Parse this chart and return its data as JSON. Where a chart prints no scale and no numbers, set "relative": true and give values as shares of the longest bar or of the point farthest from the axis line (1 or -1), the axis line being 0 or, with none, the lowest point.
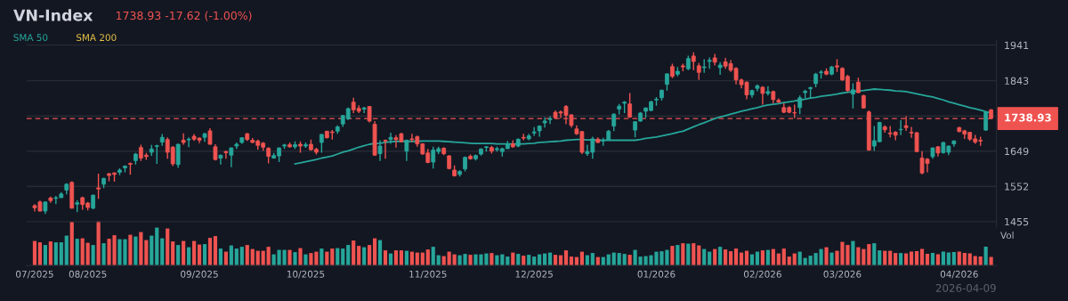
{
  "chart_data": [
    {
      "type": "candlestick",
      "title": "VN-Index",
      "subtitle": "1738.93 -17.62 (-1.00%)",
      "categories": [
        null,
        null,
        null,
        null,
        null,
        null,
        null,
        null,
        null,
        null,
        null,
        null,
        null,
        null,
        null,
        null,
        null,
        null,
        null,
        null,
        null,
        null,
        null,
        null,
        null,
        null,
        null,
        null,
        null,
        null,
        null,
        null,
        null,
        null,
        null,
        null,
        null,
        null,
        null,
        null,
        null,
        null,
        null,
        null,
        null,
        null,
        null,
        null,
        null,
        null,
        null,
        null,
        null,
        null,
        null,
        null,
        null,
        null,
        null,
        null,
        null,
        null,
        null,
        null,
        null,
        null,
        null,
        null,
        null,
        null,
        null,
        null,
        null,
        null,
        null,
        null,
        null,
        null,
        null,
        null,
        null,
        null,
        null,
        null,
        null,
        null,
        null,
        null,
        null,
        null,
        null,
        null,
        null,
        null,
        null,
        null,
        null,
        null,
        null,
        null,
        null,
        null,
        null,
        null,
        null,
        null,
        null,
        null,
        null,
        null,
        null,
        null,
        null,
        null,
        null,
        null,
        null,
        null,
        null,
        null,
        null,
        null,
        null,
        null,
        null,
        null,
        null,
        null,
        null,
        null,
        null,
        null,
        null,
        null,
        null,
        null,
        null,
        null,
        null,
        null,
        null,
        null,
        null,
        null,
        null,
        null,
        null,
        null,
        null,
        null,
        null,
        null,
        null,
        null,
        null,
        null,
        null,
        null,
        null,
        null,
        null,
        null,
        null,
        null,
        null,
        null,
        null,
        null,
        null,
        null,
        null,
        null,
        null,
        null,
        null,
        null,
        null,
        null,
        null,
        null,
        null
      ],
      "ohlc": [
        [
          1499,
          1503,
          1483,
          1493
        ],
        [
          1509,
          1513,
          1483,
          1484
        ],
        [
          1484,
          1510,
          1476,
          1509
        ],
        [
          1520,
          1524,
          1507,
          1513
        ],
        [
          1519,
          1526,
          1503,
          1521
        ],
        [
          1521,
          1536,
          1520,
          1531
        ],
        [
          1542,
          1561,
          1530,
          1558
        ],
        [
          1563,
          1566,
          1491,
          1492
        ],
        [
          1503,
          1514,
          1481,
          1507
        ],
        [
          1521,
          1524,
          1488,
          1502
        ],
        [
          1506,
          1509,
          1486,
          1494
        ],
        [
          1492,
          1529,
          1489,
          1528
        ],
        [
          1548,
          1587,
          1518,
          1545
        ],
        [
          1558,
          1576,
          1547,
          1574
        ],
        [
          1587,
          1589,
          1566,
          1582
        ],
        [
          1589,
          1591,
          1565,
          1585
        ],
        [
          1591,
          1602,
          1583,
          1597
        ],
        [
          1603,
          1610,
          1591,
          1608
        ],
        [
          1615,
          1618,
          1584,
          1613
        ],
        [
          1623,
          1644,
          1612,
          1641
        ],
        [
          1659,
          1667,
          1622,
          1630
        ],
        [
          1638,
          1644,
          1625,
          1634
        ],
        [
          1646,
          1666,
          1636,
          1655
        ],
        [
          1662,
          1667,
          1614,
          1664
        ],
        [
          1674,
          1696,
          1664,
          1687
        ],
        [
          1681,
          1687,
          1628,
          1646
        ],
        [
          1660,
          1663,
          1608,
          1614
        ],
        [
          1612,
          1669,
          1603,
          1668
        ],
        [
          1679,
          1698,
          1667,
          1673
        ],
        [
          1680,
          1687,
          1660,
          1682
        ],
        [
          1690,
          1696,
          1677,
          1682
        ],
        [
          1685,
          1687,
          1671,
          1679
        ],
        [
          1687,
          1700,
          1675,
          1697
        ],
        [
          1705,
          1712,
          1667,
          1668
        ],
        [
          1661,
          1668,
          1623,
          1626
        ],
        [
          1630,
          1640,
          1612,
          1638
        ],
        [
          1648,
          1650,
          1628,
          1645
        ],
        [
          1638,
          1659,
          1605,
          1658
        ],
        [
          1663,
          1673,
          1655,
          1668
        ],
        [
          1673,
          1687,
          1669,
          1686
        ],
        [
          1697,
          1699,
          1677,
          1681
        ],
        [
          1679,
          1685,
          1671,
          1673
        ],
        [
          1677,
          1681,
          1653,
          1665
        ],
        [
          1671,
          1674,
          1650,
          1660
        ],
        [
          1657,
          1660,
          1615,
          1635
        ],
        [
          1630,
          1644,
          1628,
          1637
        ],
        [
          1636,
          1659,
          1619,
          1658
        ],
        [
          1663,
          1669,
          1655,
          1666
        ],
        [
          1667,
          1673,
          1658,
          1661
        ],
        [
          1661,
          1676,
          1655,
          1667
        ],
        [
          1668,
          1676,
          1645,
          1663
        ],
        [
          1663,
          1673,
          1658,
          1667
        ],
        [
          1668,
          1681,
          1650,
          1653
        ],
        [
          1654,
          1658,
          1640,
          1646
        ],
        [
          1673,
          1697,
          1645,
          1695
        ],
        [
          1704,
          1705,
          1684,
          1686
        ],
        [
          1702,
          1707,
          1681,
          1700
        ],
        [
          1704,
          1720,
          1697,
          1716
        ],
        [
          1724,
          1749,
          1716,
          1747
        ],
        [
          1738,
          1769,
          1735,
          1766
        ],
        [
          1784,
          1796,
          1754,
          1763
        ],
        [
          1767,
          1775,
          1754,
          1759
        ],
        [
          1765,
          1771,
          1754,
          1768
        ],
        [
          1772,
          1773,
          1728,
          1732
        ],
        [
          1723,
          1732,
          1637,
          1638
        ],
        [
          1642,
          1679,
          1622,
          1663
        ],
        [
          1679,
          1681,
          1628,
          1677
        ],
        [
          1681,
          1700,
          1669,
          1687
        ],
        [
          1686,
          1693,
          1659,
          1681
        ],
        [
          1697,
          1700,
          1674,
          1675
        ],
        [
          1649,
          1681,
          1622,
          1679
        ],
        [
          1683,
          1697,
          1674,
          1681
        ],
        [
          1689,
          1692,
          1661,
          1669
        ],
        [
          1669,
          1671,
          1640,
          1641
        ],
        [
          1644,
          1655,
          1616,
          1618
        ],
        [
          1619,
          1661,
          1601,
          1652
        ],
        [
          1648,
          1661,
          1641,
          1656
        ],
        [
          1657,
          1660,
          1638,
          1642
        ],
        [
          1636,
          1638,
          1599,
          1601
        ],
        [
          1597,
          1610,
          1579,
          1581
        ],
        [
          1585,
          1597,
          1579,
          1593
        ],
        [
          1600,
          1634,
          1593,
          1632
        ],
        [
          1635,
          1640,
          1626,
          1628
        ],
        [
          1628,
          1640,
          1623,
          1637
        ],
        [
          1641,
          1657,
          1637,
          1655
        ],
        [
          1659,
          1663,
          1648,
          1661
        ],
        [
          1659,
          1664,
          1642,
          1649
        ],
        [
          1653,
          1661,
          1648,
          1656
        ],
        [
          1648,
          1659,
          1634,
          1656
        ],
        [
          1656,
          1677,
          1655,
          1668
        ],
        [
          1669,
          1679,
          1658,
          1661
        ],
        [
          1663,
          1684,
          1660,
          1682
        ],
        [
          1687,
          1697,
          1679,
          1685
        ],
        [
          1683,
          1697,
          1679,
          1691
        ],
        [
          1699,
          1715,
          1691,
          1702
        ],
        [
          1705,
          1720,
          1689,
          1718
        ],
        [
          1727,
          1742,
          1714,
          1732
        ],
        [
          1736,
          1745,
          1724,
          1739
        ],
        [
          1756,
          1761,
          1738,
          1741
        ],
        [
          1757,
          1761,
          1740,
          1754
        ],
        [
          1772,
          1776,
          1723,
          1748
        ],
        [
          1749,
          1751,
          1714,
          1720
        ],
        [
          1710,
          1720,
          1694,
          1697
        ],
        [
          1703,
          1705,
          1641,
          1646
        ],
        [
          1642,
          1667,
          1636,
          1648
        ],
        [
          1646,
          1689,
          1628,
          1683
        ],
        [
          1682,
          1687,
          1671,
          1673
        ],
        [
          1677,
          1686,
          1664,
          1679
        ],
        [
          1679,
          1707,
          1678,
          1704
        ],
        [
          1718,
          1753,
          1704,
          1751
        ],
        [
          1765,
          1779,
          1750,
          1773
        ],
        [
          1781,
          1787,
          1754,
          1784
        ],
        [
          1779,
          1809,
          1741,
          1743
        ],
        [
          1707,
          1732,
          1687,
          1730
        ],
        [
          1732,
          1757,
          1730,
          1754
        ],
        [
          1759,
          1769,
          1741,
          1768
        ],
        [
          1761,
          1788,
          1759,
          1785
        ],
        [
          1790,
          1798,
          1774,
          1792
        ],
        [
          1796,
          1818,
          1788,
          1817
        ],
        [
          1833,
          1863,
          1816,
          1862
        ],
        [
          1882,
          1890,
          1850,
          1855
        ],
        [
          1861,
          1881,
          1855,
          1869
        ],
        [
          1884,
          1890,
          1869,
          1881
        ],
        [
          1876,
          1912,
          1872,
          1904
        ],
        [
          1911,
          1921,
          1872,
          1896
        ],
        [
          1884,
          1892,
          1845,
          1866
        ],
        [
          1879,
          1902,
          1865,
          1881
        ],
        [
          1896,
          1907,
          1876,
          1899
        ],
        [
          1906,
          1917,
          1885,
          1894
        ],
        [
          1879,
          1894,
          1859,
          1886
        ],
        [
          1895,
          1906,
          1876,
          1883
        ],
        [
          1890,
          1900,
          1867,
          1872
        ],
        [
          1877,
          1880,
          1833,
          1845
        ],
        [
          1845,
          1849,
          1822,
          1832
        ],
        [
          1839,
          1841,
          1792,
          1804
        ],
        [
          1804,
          1818,
          1796,
          1816
        ],
        [
          1822,
          1833,
          1814,
          1829
        ],
        [
          1825,
          1828,
          1777,
          1808
        ],
        [
          1808,
          1828,
          1802,
          1813
        ],
        [
          1813,
          1816,
          1781,
          1791
        ],
        [
          1789,
          1794,
          1782,
          1784
        ],
        [
          1769,
          1781,
          1754,
          1756
        ],
        [
          1769,
          1773,
          1753,
          1756
        ],
        [
          1755,
          1777,
          1740,
          1754
        ],
        [
          1769,
          1802,
          1751,
          1796
        ],
        [
          1810,
          1818,
          1794,
          1814
        ],
        [
          1821,
          1827,
          1794,
          1824
        ],
        [
          1835,
          1865,
          1825,
          1861
        ],
        [
          1865,
          1872,
          1849,
          1867
        ],
        [
          1869,
          1877,
          1858,
          1861
        ],
        [
          1861,
          1884,
          1858,
          1881
        ],
        [
          1884,
          1902,
          1867,
          1881
        ],
        [
          1877,
          1880,
          1843,
          1845
        ],
        [
          1855,
          1859,
          1812,
          1816
        ],
        [
          1806,
          1836,
          1767,
          1818
        ],
        [
          1839,
          1851,
          1809,
          1810
        ],
        [
          1802,
          1804,
          1766,
          1768
        ],
        [
          1757,
          1761,
          1650,
          1652
        ],
        [
          1663,
          1718,
          1650,
          1678
        ],
        [
          1675,
          1730,
          1674,
          1728
        ],
        [
          1716,
          1720,
          1700,
          1708
        ],
        [
          1699,
          1718,
          1687,
          1697
        ],
        [
          1701,
          1704,
          1679,
          1693
        ],
        [
          1708,
          1734,
          1693,
          1709
        ],
        [
          1719,
          1745,
          1705,
          1714
        ],
        [
          1701,
          1716,
          1686,
          1699
        ],
        [
          1700,
          1701,
          1646,
          1648
        ],
        [
          1630,
          1649,
          1585,
          1589
        ],
        [
          1627,
          1630,
          1591,
          1615
        ],
        [
          1634,
          1659,
          1628,
          1658
        ],
        [
          1661,
          1663,
          1634,
          1644
        ],
        [
          1645,
          1675,
          1642,
          1673
        ],
        [
          1646,
          1665,
          1638,
          1663
        ],
        [
          1669,
          1679,
          1661,
          1677
        ],
        [
          1714,
          1716,
          1701,
          1703
        ],
        [
          1705,
          1708,
          1683,
          1696
        ],
        [
          1701,
          1702,
          1677,
          1682
        ],
        [
          1683,
          1694,
          1669,
          1674
        ],
        [
          1679,
          1689,
          1664,
          1677
        ],
        [
          1707,
          1759,
          1705,
          1756
        ],
        [
          1763,
          1765,
          1738.93,
          1738.93
        ]
      ],
      "colors": [
        "#ef5350",
        "#ef5350",
        "#26a69a",
        "#ef5350",
        "#26a69a",
        "#26a69a",
        "#26a69a",
        "#ef5350",
        "#26a69a",
        "#ef5350",
        "#ef5350",
        "#26a69a",
        "#ef5350",
        "#26a69a",
        "#ef5350",
        "#ef5350",
        "#26a69a",
        "#26a69a",
        "#ef5350",
        "#26a69a",
        "#ef5350",
        "#ef5350",
        "#26a69a",
        "#26a69a",
        "#26a69a",
        "#ef5350",
        "#ef5350",
        "#26a69a",
        "#ef5350",
        "#26a69a",
        "#ef5350",
        "#ef5350",
        "#26a69a",
        "#ef5350",
        "#ef5350",
        "#26a69a",
        "#ef5350",
        "#26a69a",
        "#26a69a",
        "#26a69a",
        "#ef5350",
        "#ef5350",
        "#ef5350",
        "#ef5350",
        "#ef5350",
        "#26a69a",
        "#26a69a",
        "#26a69a",
        "#ef5350",
        "#26a69a",
        "#ef5350",
        "#26a69a",
        "#ef5350",
        "#ef5350",
        "#26a69a",
        "#ef5350",
        "#ef5350",
        "#26a69a",
        "#26a69a",
        "#26a69a",
        "#ef5350",
        "#ef5350",
        "#26a69a",
        "#ef5350",
        "#ef5350",
        "#26a69a",
        "#ef5350",
        "#26a69a",
        "#ef5350",
        "#ef5350",
        "#26a69a",
        "#ef5350",
        "#ef5350",
        "#ef5350",
        "#ef5350",
        "#26a69a",
        "#26a69a",
        "#ef5350",
        "#ef5350",
        "#ef5350",
        "#26a69a",
        "#26a69a",
        "#ef5350",
        "#26a69a",
        "#26a69a",
        "#26a69a",
        "#ef5350",
        "#26a69a",
        "#26a69a",
        "#26a69a",
        "#ef5350",
        "#26a69a",
        "#ef5350",
        "#26a69a",
        "#26a69a",
        "#26a69a",
        "#26a69a",
        "#26a69a",
        "#ef5350",
        "#ef5350",
        "#ef5350",
        "#ef5350",
        "#ef5350",
        "#ef5350",
        "#26a69a",
        "#26a69a",
        "#ef5350",
        "#26a69a",
        "#26a69a",
        "#26a69a",
        "#26a69a",
        "#26a69a",
        "#ef5350",
        "#26a69a",
        "#26a69a",
        "#26a69a",
        "#26a69a",
        "#26a69a",
        "#26a69a",
        "#26a69a",
        "#ef5350",
        "#26a69a",
        "#ef5350",
        "#26a69a",
        "#ef5350",
        "#ef5350",
        "#26a69a",
        "#26a69a",
        "#ef5350",
        "#26a69a",
        "#ef5350",
        "#ef5350",
        "#ef5350",
        "#ef5350",
        "#ef5350",
        "#26a69a",
        "#26a69a",
        "#ef5350",
        "#26a69a",
        "#ef5350",
        "#ef5350",
        "#ef5350",
        "#ef5350",
        "#ef5350",
        "#26a69a",
        "#26a69a",
        "#26a69a",
        "#26a69a",
        "#26a69a",
        "#ef5350",
        "#26a69a",
        "#ef5350",
        "#ef5350",
        "#ef5350",
        "#26a69a",
        "#ef5350",
        "#ef5350",
        "#ef5350",
        "#26a69a",
        "#26a69a",
        "#ef5350",
        "#ef5350",
        "#ef5350",
        "#26a69a",
        "#ef5350",
        "#ef5350",
        "#ef5350",
        "#ef5350",
        "#ef5350",
        "#26a69a",
        "#ef5350",
        "#26a69a",
        "#26a69a",
        "#26a69a",
        "#ef5350",
        "#ef5350",
        "#ef5350",
        "#ef5350",
        "#ef5350",
        "#26a69a",
        "#ef5350"
      ],
      "series": [
        {
          "name": "SMA 50",
          "type": "line",
          "color": "#26a69a",
          "values": [
            null,
            null,
            null,
            null,
            null,
            null,
            null,
            null,
            null,
            null,
            null,
            null,
            null,
            null,
            null,
            null,
            null,
            null,
            null,
            null,
            null,
            null,
            null,
            null,
            null,
            null,
            null,
            null,
            null,
            null,
            null,
            null,
            null,
            null,
            null,
            null,
            null,
            null,
            null,
            null,
            null,
            null,
            null,
            null,
            null,
            null,
            null,
            null,
            null,
            1614,
            1617,
            1620,
            1623,
            1626,
            1630,
            1633,
            1636,
            1641,
            1646,
            1650,
            1655,
            1660,
            1664,
            1668,
            1670,
            1671,
            1673,
            1675,
            1676,
            1676,
            1676,
            1676,
            1676,
            1677,
            1677,
            1677,
            1677,
            1676,
            1675,
            1674,
            1673,
            1672,
            1671,
            1670,
            1670,
            1670,
            1670,
            1669,
            1669,
            1669,
            1669,
            1669,
            1669,
            1670,
            1671,
            1673,
            1674,
            1675,
            1676,
            1677,
            1679,
            1680,
            1681,
            1681,
            1680,
            1680,
            1679,
            1679,
            1679,
            1679,
            1679,
            1679,
            1679,
            1679,
            1681,
            1684,
            1686,
            1688,
            1691,
            1694,
            1697,
            1701,
            1704,
            1710,
            1716,
            1722,
            1727,
            1733,
            1739,
            1743,
            1747,
            1751,
            1755,
            1759,
            1762,
            1766,
            1769,
            1773,
            1776,
            1778,
            1780,
            1783,
            1785,
            1787,
            1790,
            1792,
            1795,
            1797,
            1800,
            1802,
            1804,
            1806,
            1809,
            1811,
            1813,
            1815,
            1816,
            1818,
            1820,
            1819,
            1818,
            1817,
            1815,
            1814,
            1813,
            1810,
            1807,
            1804,
            1801,
            1798,
            1794,
            1790,
            1785,
            1781,
            1777,
            1773,
            1769,
            1766,
            1762,
            1758,
            1754
          ]
        },
        {
          "name": "SMA 200",
          "type": "line",
          "color": "#e8c547",
          "values": [
            null,
            null,
            null,
            null,
            null,
            null,
            null,
            null,
            null,
            null,
            null,
            null,
            null,
            null,
            null,
            null,
            null,
            null,
            null,
            null,
            null,
            null,
            null,
            null,
            null,
            null,
            null,
            null,
            null,
            null,
            null,
            null,
            null,
            null,
            null,
            null,
            null,
            null,
            null,
            null,
            null,
            null,
            null,
            null,
            null,
            null,
            null,
            null,
            null,
            null,
            null,
            null,
            null,
            null,
            null,
            null,
            null,
            null,
            null,
            null,
            null,
            null,
            null,
            null,
            null,
            null,
            null,
            null,
            null,
            null,
            null,
            null,
            null,
            null,
            null,
            null,
            null,
            null,
            null,
            null,
            null,
            null,
            null,
            null,
            null,
            null,
            null,
            null,
            null,
            null,
            null,
            null,
            null,
            null,
            null,
            null,
            null,
            null,
            null,
            null,
            null,
            null,
            null,
            null,
            null,
            null,
            null,
            null,
            null,
            null,
            null,
            null,
            null,
            null,
            null,
            null,
            null,
            null,
            null,
            null,
            null,
            null,
            null,
            null,
            null,
            null,
            null,
            null,
            null,
            null,
            null,
            null,
            null,
            null,
            null,
            null,
            null,
            null,
            null,
            null,
            null,
            null,
            null,
            null,
            null,
            null,
            null,
            null,
            null,
            null,
            null,
            null,
            null,
            null,
            null,
            null,
            null,
            null,
            null,
            null,
            null,
            null,
            null,
            null,
            null,
            null,
            null,
            null,
            null,
            null,
            null,
            null,
            null,
            null,
            null,
            null,
            null,
            null,
            null,
            null,
            null
          ]
        }
      ],
      "ylim": [
        1440,
        1955
      ],
      "yticks": [
        1455,
        1552,
        1649,
        {
          "value": 1746,
          "label": null
        },
        1843,
        1941
      ],
      "grid": "y",
      "legend": "top left",
      "tick_labels": "y",
      "ref_lines": [
        {
          "axis": "y",
          "value": 1738.93,
          "label": "1738.93",
          "color": "#ef5350",
          "line_style": "dashed"
        }
      ],
      "annotations": [
        "2026-04-09"
      ]
    },
    {
      "type": "bar",
      "relative": true,
      "ylabel": "Vol",
      "tick_labels": "x",
      "categories": [
        "07/2025",
        null,
        null,
        null,
        null,
        null,
        null,
        null,
        null,
        null,
        "08/2025",
        null,
        null,
        null,
        null,
        null,
        null,
        null,
        null,
        null,
        null,
        null,
        null,
        null,
        null,
        null,
        null,
        null,
        null,
        null,
        null,
        "09/2025",
        null,
        null,
        null,
        null,
        null,
        null,
        null,
        null,
        null,
        null,
        null,
        null,
        null,
        null,
        null,
        null,
        null,
        null,
        null,
        "10/2025",
        null,
        null,
        null,
        null,
        null,
        null,
        null,
        null,
        null,
        null,
        null,
        null,
        null,
        null,
        null,
        null,
        null,
        null,
        null,
        null,
        null,
        null,
        "11/2025",
        null,
        null,
        null,
        null,
        null,
        null,
        null,
        null,
        null,
        null,
        null,
        null,
        null,
        null,
        null,
        null,
        null,
        null,
        null,
        "12/2025",
        null,
        null,
        null,
        null,
        null,
        null,
        null,
        null,
        null,
        null,
        null,
        null,
        null,
        null,
        null,
        null,
        null,
        null,
        null,
        null,
        null,
        null,
        "01/2026",
        null,
        null,
        null,
        null,
        null,
        null,
        null,
        null,
        null,
        null,
        null,
        null,
        null,
        null,
        null,
        null,
        null,
        null,
        null,
        "02/2026",
        null,
        null,
        null,
        null,
        null,
        null,
        null,
        null,
        null,
        null,
        null,
        null,
        null,
        null,
        "03/2026",
        null,
        null,
        null,
        null,
        null,
        null,
        null,
        null,
        null,
        null,
        null,
        null,
        null,
        null,
        null,
        null,
        null,
        null,
        null,
        null,
        null,
        "04/2026",
        null,
        null,
        null,
        null,
        null,
        null
      ],
      "values": [
        0.55,
        0.52,
        0.46,
        0.54,
        0.52,
        0.52,
        0.67,
        0.98,
        0.6,
        0.61,
        0.51,
        0.46,
        1.0,
        0.5,
        0.6,
        0.68,
        0.59,
        0.59,
        0.69,
        0.65,
        0.75,
        0.57,
        0.67,
        0.85,
        0.61,
        0.83,
        0.54,
        0.46,
        0.55,
        0.41,
        0.55,
        0.47,
        0.48,
        0.62,
        0.66,
        0.38,
        0.31,
        0.45,
        0.38,
        0.42,
        0.46,
        0.37,
        0.33,
        0.33,
        0.42,
        0.25,
        0.35,
        0.35,
        0.35,
        0.3,
        0.39,
        0.25,
        0.28,
        0.31,
        0.38,
        0.31,
        0.38,
        0.39,
        0.38,
        0.46,
        0.56,
        0.44,
        0.41,
        0.46,
        0.61,
        0.57,
        0.34,
        0.27,
        0.34,
        0.34,
        0.33,
        0.31,
        0.29,
        0.29,
        0.36,
        0.42,
        0.23,
        0.21,
        0.31,
        0.25,
        0.23,
        0.26,
        0.24,
        0.25,
        0.25,
        0.27,
        0.28,
        0.23,
        0.25,
        0.2,
        0.29,
        0.26,
        0.22,
        0.24,
        0.2,
        0.25,
        0.27,
        0.29,
        0.24,
        0.23,
        0.34,
        0.2,
        0.19,
        0.31,
        0.23,
        0.28,
        0.19,
        0.19,
        0.25,
        0.29,
        0.28,
        0.26,
        0.24,
        0.35,
        0.2,
        0.21,
        0.23,
        0.31,
        0.32,
        0.35,
        0.44,
        0.46,
        0.5,
        0.49,
        0.5,
        0.45,
        0.37,
        0.31,
        0.37,
        0.42,
        0.36,
        0.32,
        0.38,
        0.29,
        0.33,
        0.25,
        0.31,
        0.34,
        0.35,
        0.37,
        0.27,
        0.38,
        0.2,
        0.27,
        0.31,
        0.17,
        0.22,
        0.28,
        0.37,
        0.41,
        0.29,
        0.33,
        0.53,
        0.46,
        0.55,
        0.41,
        0.37,
        0.48,
        0.5,
        0.34,
        0.33,
        0.33,
        0.28,
        0.28,
        0.27,
        0.31,
        0.32,
        0.37,
        0.26,
        0.28,
        0.25,
        0.31,
        0.29,
        0.3,
        0.31,
        0.28,
        0.27,
        0.21,
        0.2,
        0.42,
        0.19
      ],
      "colors": [
        "#ef5350",
        "#ef5350",
        "#26a69a",
        "#ef5350",
        "#26a69a",
        "#26a69a",
        "#26a69a",
        "#ef5350",
        "#26a69a",
        "#ef5350",
        "#ef5350",
        "#26a69a",
        "#ef5350",
        "#26a69a",
        "#ef5350",
        "#ef5350",
        "#26a69a",
        "#26a69a",
        "#ef5350",
        "#26a69a",
        "#ef5350",
        "#ef5350",
        "#26a69a",
        "#26a69a",
        "#26a69a",
        "#ef5350",
        "#ef5350",
        "#26a69a",
        "#ef5350",
        "#26a69a",
        "#ef5350",
        "#ef5350",
        "#26a69a",
        "#ef5350",
        "#ef5350",
        "#26a69a",
        "#ef5350",
        "#26a69a",
        "#26a69a",
        "#26a69a",
        "#ef5350",
        "#ef5350",
        "#ef5350",
        "#ef5350",
        "#ef5350",
        "#26a69a",
        "#26a69a",
        "#26a69a",
        "#ef5350",
        "#26a69a",
        "#ef5350",
        "#26a69a",
        "#ef5350",
        "#ef5350",
        "#26a69a",
        "#ef5350",
        "#ef5350",
        "#26a69a",
        "#26a69a",
        "#26a69a",
        "#ef5350",
        "#ef5350",
        "#26a69a",
        "#ef5350",
        "#ef5350",
        "#26a69a",
        "#ef5350",
        "#26a69a",
        "#ef5350",
        "#ef5350",
        "#26a69a",
        "#ef5350",
        "#ef5350",
        "#ef5350",
        "#ef5350",
        "#26a69a",
        "#26a69a",
        "#ef5350",
        "#ef5350",
        "#ef5350",
        "#26a69a",
        "#26a69a",
        "#ef5350",
        "#26a69a",
        "#26a69a",
        "#26a69a",
        "#ef5350",
        "#26a69a",
        "#26a69a",
        "#26a69a",
        "#ef5350",
        "#26a69a",
        "#ef5350",
        "#26a69a",
        "#26a69a",
        "#26a69a",
        "#26a69a",
        "#26a69a",
        "#ef5350",
        "#ef5350",
        "#ef5350",
        "#ef5350",
        "#ef5350",
        "#ef5350",
        "#26a69a",
        "#26a69a",
        "#ef5350",
        "#26a69a",
        "#26a69a",
        "#26a69a",
        "#26a69a",
        "#26a69a",
        "#ef5350",
        "#26a69a",
        "#26a69a",
        "#26a69a",
        "#26a69a",
        "#26a69a",
        "#26a69a",
        "#26a69a",
        "#ef5350",
        "#26a69a",
        "#ef5350",
        "#26a69a",
        "#ef5350",
        "#ef5350",
        "#26a69a",
        "#26a69a",
        "#ef5350",
        "#26a69a",
        "#ef5350",
        "#ef5350",
        "#ef5350",
        "#ef5350",
        "#ef5350",
        "#26a69a",
        "#26a69a",
        "#ef5350",
        "#26a69a",
        "#ef5350",
        "#ef5350",
        "#ef5350",
        "#ef5350",
        "#ef5350",
        "#26a69a",
        "#26a69a",
        "#26a69a",
        "#26a69a",
        "#26a69a",
        "#ef5350",
        "#26a69a",
        "#ef5350",
        "#ef5350",
        "#ef5350",
        "#26a69a",
        "#ef5350",
        "#ef5350",
        "#ef5350",
        "#26a69a",
        "#26a69a",
        "#ef5350",
        "#ef5350",
        "#ef5350",
        "#26a69a",
        "#ef5350",
        "#ef5350",
        "#ef5350",
        "#ef5350",
        "#ef5350",
        "#26a69a",
        "#ef5350",
        "#26a69a",
        "#26a69a",
        "#26a69a",
        "#ef5350",
        "#ef5350",
        "#ef5350",
        "#ef5350",
        "#ef5350",
        "#26a69a",
        "#ef5350"
      ]
    }
  ]
}
